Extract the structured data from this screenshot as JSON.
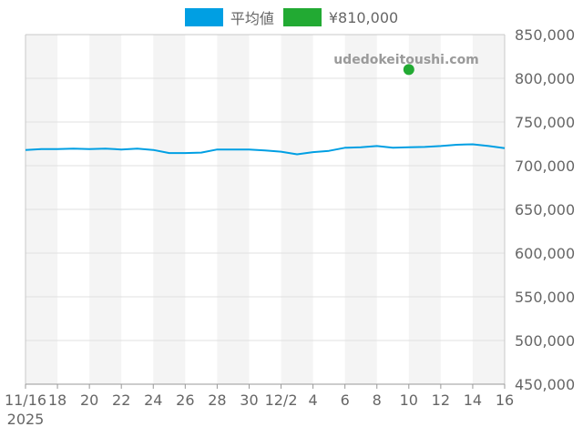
{
  "legend": {
    "series_0": "平均値",
    "series_1": "¥810,000"
  },
  "watermark": "udedokeitoushi.com",
  "colors": {
    "line": "#009fe3",
    "marker": "#22aa33",
    "band": "#f4f4f4",
    "grid": "#e0e0e0",
    "axis": "#c8c8c8",
    "text": "#666666"
  },
  "chart_data": {
    "type": "line",
    "x_axis": {
      "type": "date",
      "range": [
        "2025-11-16",
        "2025-12-16"
      ],
      "ticks": [
        {
          "date": "2025-11-16",
          "label": "11/16",
          "sublabel": "2025"
        },
        {
          "date": "2025-11-18",
          "label": "18"
        },
        {
          "date": "2025-11-20",
          "label": "20"
        },
        {
          "date": "2025-11-22",
          "label": "22"
        },
        {
          "date": "2025-11-24",
          "label": "24"
        },
        {
          "date": "2025-11-26",
          "label": "26"
        },
        {
          "date": "2025-11-28",
          "label": "28"
        },
        {
          "date": "2025-11-30",
          "label": "30"
        },
        {
          "date": "2025-12-02",
          "label": "12/2"
        },
        {
          "date": "2025-12-04",
          "label": "4"
        },
        {
          "date": "2025-12-06",
          "label": "6"
        },
        {
          "date": "2025-12-08",
          "label": "8"
        },
        {
          "date": "2025-12-10",
          "label": "10"
        },
        {
          "date": "2025-12-12",
          "label": "12"
        },
        {
          "date": "2025-12-14",
          "label": "14"
        },
        {
          "date": "2025-12-16",
          "label": "16"
        }
      ]
    },
    "y_axis": {
      "range": [
        450000,
        850000
      ],
      "position": "right",
      "ticks": [
        {
          "value": 850000,
          "label": "850,000"
        },
        {
          "value": 800000,
          "label": "800,000"
        },
        {
          "value": 750000,
          "label": "750,000"
        },
        {
          "value": 700000,
          "label": "700,000"
        },
        {
          "value": 650000,
          "label": "650,000"
        },
        {
          "value": 600000,
          "label": "600,000"
        },
        {
          "value": 550000,
          "label": "550,000"
        },
        {
          "value": 500000,
          "label": "500,000"
        },
        {
          "value": 450000,
          "label": "450,000"
        }
      ]
    },
    "grid": true,
    "alternating_day_bands": true,
    "legend_position": "top-center",
    "series": [
      {
        "name": "平均値",
        "kind": "line",
        "points": [
          {
            "x": "2025-11-16",
            "y": 718000
          },
          {
            "x": "2025-11-17",
            "y": 719000
          },
          {
            "x": "2025-11-18",
            "y": 719000
          },
          {
            "x": "2025-11-19",
            "y": 719500
          },
          {
            "x": "2025-11-20",
            "y": 719000
          },
          {
            "x": "2025-11-21",
            "y": 719500
          },
          {
            "x": "2025-11-22",
            "y": 718500
          },
          {
            "x": "2025-11-23",
            "y": 719500
          },
          {
            "x": "2025-11-24",
            "y": 718000
          },
          {
            "x": "2025-11-25",
            "y": 714500
          },
          {
            "x": "2025-11-26",
            "y": 714500
          },
          {
            "x": "2025-11-27",
            "y": 715000
          },
          {
            "x": "2025-11-28",
            "y": 718500
          },
          {
            "x": "2025-11-29",
            "y": 718500
          },
          {
            "x": "2025-11-30",
            "y": 718500
          },
          {
            "x": "2025-12-01",
            "y": 717500
          },
          {
            "x": "2025-12-02",
            "y": 716000
          },
          {
            "x": "2025-12-03",
            "y": 713000
          },
          {
            "x": "2025-12-04",
            "y": 715500
          },
          {
            "x": "2025-12-05",
            "y": 717000
          },
          {
            "x": "2025-12-06",
            "y": 720500
          },
          {
            "x": "2025-12-07",
            "y": 721000
          },
          {
            "x": "2025-12-08",
            "y": 722500
          },
          {
            "x": "2025-12-09",
            "y": 720500
          },
          {
            "x": "2025-12-10",
            "y": 721000
          },
          {
            "x": "2025-12-11",
            "y": 721500
          },
          {
            "x": "2025-12-12",
            "y": 722500
          },
          {
            "x": "2025-12-13",
            "y": 724000
          },
          {
            "x": "2025-12-14",
            "y": 724500
          },
          {
            "x": "2025-12-15",
            "y": 722500
          },
          {
            "x": "2025-12-16",
            "y": 720000
          }
        ]
      },
      {
        "name": "¥810,000",
        "kind": "point",
        "points": [
          {
            "x": "2025-12-10",
            "y": 810000
          }
        ]
      }
    ]
  }
}
